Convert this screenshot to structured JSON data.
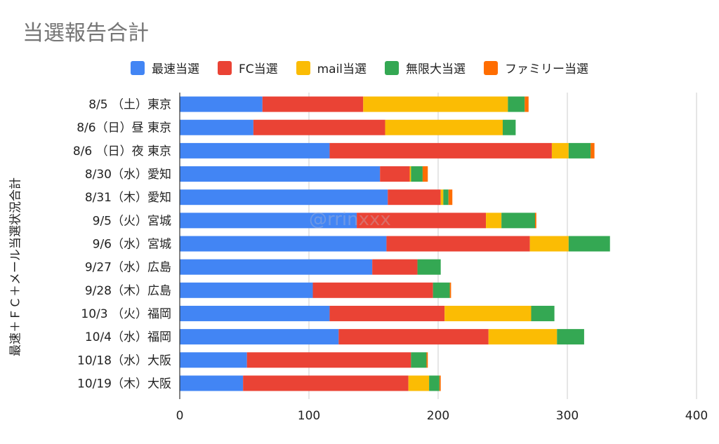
{
  "chart_data": {
    "type": "bar",
    "orientation": "horizontal",
    "stacked": true,
    "title": "当選報告合計",
    "xlabel": "",
    "ylabel": "最速＋ＦＣ＋メール当選状況合計",
    "xlim": [
      0,
      400
    ],
    "x_ticks": [
      "0",
      "100",
      "200",
      "300",
      "400"
    ],
    "x_tick_values": [
      0,
      100,
      200,
      300,
      400
    ],
    "grid": true,
    "legend_position": "top",
    "categories": [
      "8/5 （土）東京",
      "8/6（日）昼 東京",
      "8/6 （日）夜 東京",
      "8/30（水）愛知",
      "8/31（木）愛知",
      "9/5（火）宮城",
      "9/6（水）宮城",
      "9/27（水）広島",
      "9/28（木）広島",
      "10/3 （火）福岡",
      "10/4（水）福岡",
      "10/18（水）大阪",
      "10/19（木）大阪"
    ],
    "series": [
      {
        "name": "最速当選",
        "color": "#4285f4",
        "values": [
          64,
          57,
          116,
          155,
          161,
          137,
          160,
          149,
          103,
          116,
          123,
          52,
          49
        ]
      },
      {
        "name": "FC当選",
        "color": "#ea4335",
        "values": [
          78,
          102,
          172,
          23,
          41,
          100,
          111,
          35,
          93,
          89,
          116,
          127,
          128
        ]
      },
      {
        "name": "mail当選",
        "color": "#fbbc04",
        "values": [
          112,
          91,
          13,
          1,
          2,
          12,
          30,
          0,
          0,
          67,
          53,
          0,
          16
        ]
      },
      {
        "name": "無限大当選",
        "color": "#34a853",
        "values": [
          13,
          10,
          17,
          9,
          4,
          26,
          32,
          18,
          13,
          18,
          21,
          12,
          8
        ]
      },
      {
        "name": "ファミリー当選",
        "color": "#ff6d01",
        "values": [
          3,
          0,
          3,
          4,
          3,
          1,
          0,
          0,
          1,
          0,
          0,
          1,
          1
        ]
      }
    ]
  },
  "watermark": "@rrinxxx"
}
